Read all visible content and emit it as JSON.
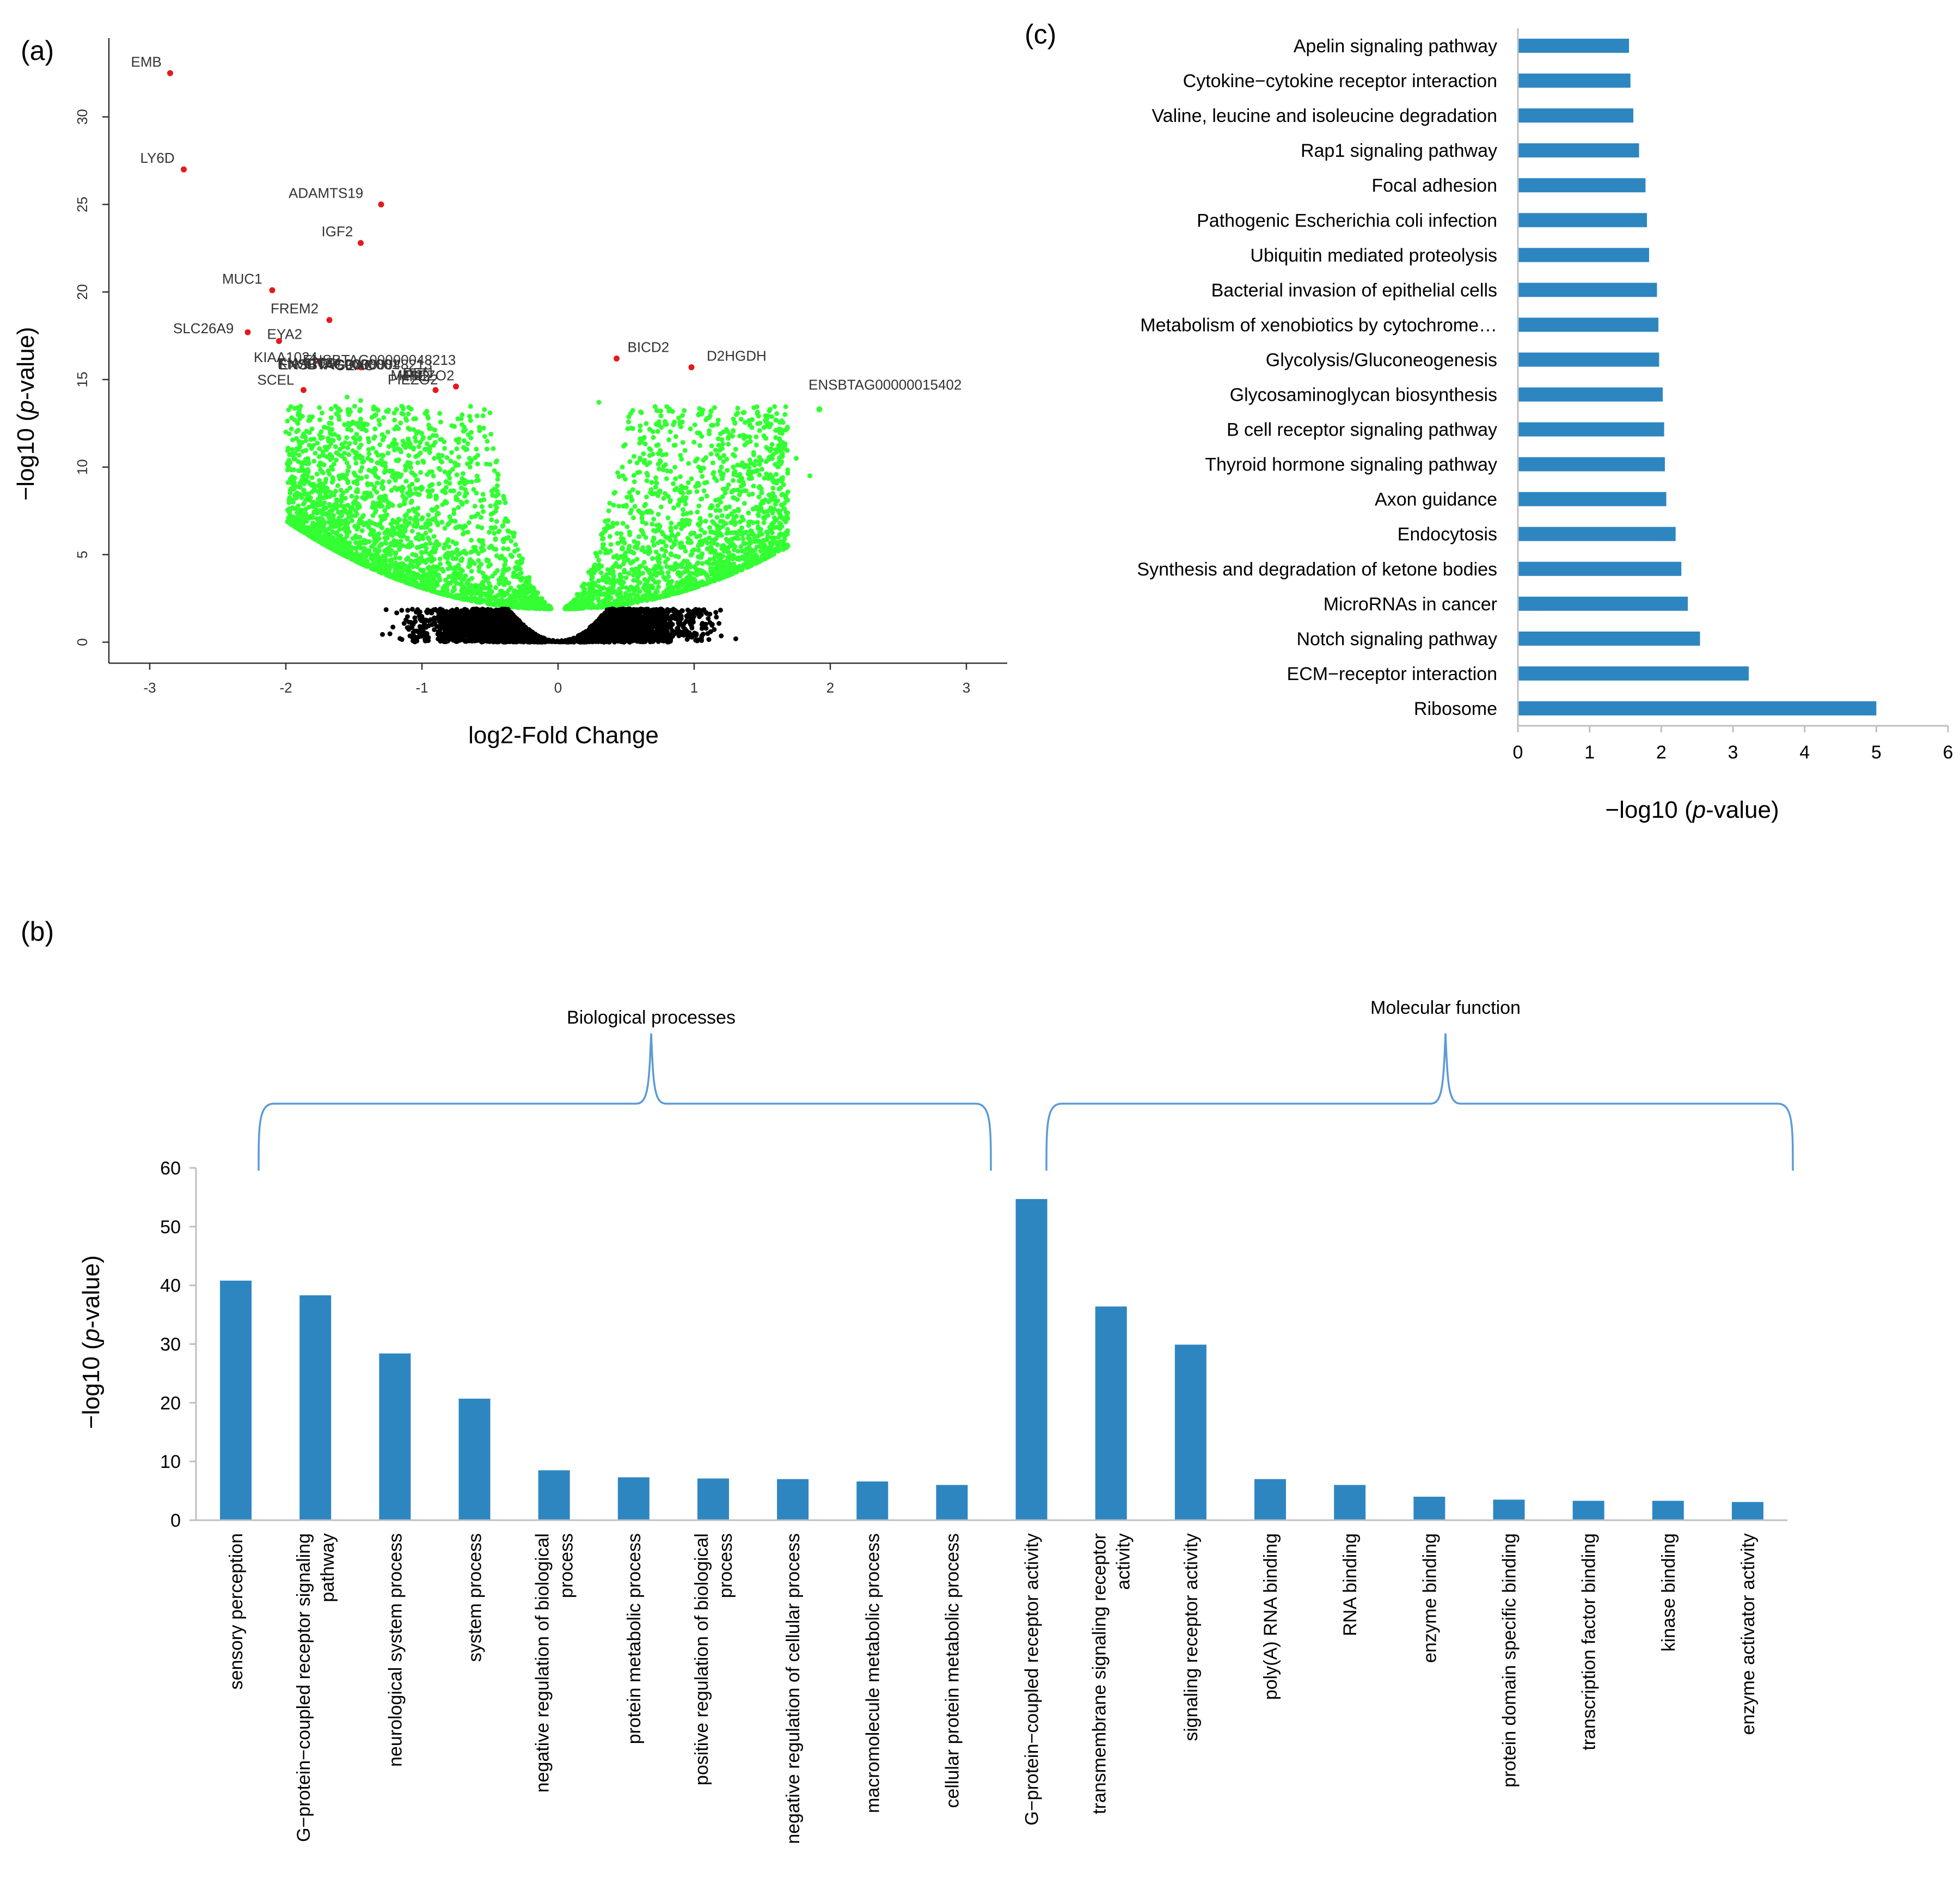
{
  "colors": {
    "bar": "#2e86c1",
    "sig_point": "#e41a1c",
    "green_point": "#33ff33",
    "black_point": "#000000",
    "brace": "#5b9bd5"
  },
  "chart_data": [
    {
      "panel": "(a)",
      "type": "scatter",
      "xlabel": "log2-Fold Change",
      "ylabel_prefix": "−log10 (",
      "ylabel_italic": "p",
      "ylabel_suffix": "-value)",
      "xlim": [
        -3.3,
        3.3
      ],
      "ylim": [
        -1.2,
        34.5
      ],
      "xticks": [
        -3,
        -2,
        -1,
        0,
        1,
        2,
        3
      ],
      "yticks": [
        0,
        5,
        10,
        15,
        20,
        25,
        30
      ],
      "background_cloud": "green points for significant genes, black points near origin for non-significant genes",
      "labeled_points": [
        {
          "gene": "EMB",
          "x": -2.85,
          "y": 32.5
        },
        {
          "gene": "LY6D",
          "x": -2.75,
          "y": 27.0
        },
        {
          "gene": "ADAMTS19",
          "x": -1.3,
          "y": 25.0
        },
        {
          "gene": "IGF2",
          "x": -1.45,
          "y": 22.8
        },
        {
          "gene": "MUC1",
          "x": -2.1,
          "y": 20.1
        },
        {
          "gene": "FREM2",
          "x": -1.68,
          "y": 18.4
        },
        {
          "gene": "SLC26A9",
          "x": -2.28,
          "y": 17.7
        },
        {
          "gene": "EYA2",
          "x": -2.05,
          "y": 17.2
        },
        {
          "gene": "KIAA1024",
          "x": -1.75,
          "y": 16.0
        },
        {
          "gene": "ENSBTAG00000048213",
          "x": -1.45,
          "y": 15.7
        },
        {
          "gene": "SCEL",
          "x": -1.87,
          "y": 14.4
        },
        {
          "gene": "PIEZO2",
          "x": -0.9,
          "y": 14.4
        },
        {
          "gene": "MFI2",
          "x": -0.75,
          "y": 14.6
        },
        {
          "gene": "BICD2",
          "x": 0.43,
          "y": 16.2
        },
        {
          "gene": "D2HGDH",
          "x": 0.98,
          "y": 15.7
        },
        {
          "gene": "ENSBTAG00000015402",
          "x": 1.92,
          "y": 13.3
        }
      ],
      "overlap_labels": [
        "KIAA1024",
        "ENSBTAG0000001",
        "6709",
        "CEAC",
        "ENSBTAG00000048213",
        "PIEZO2",
        "MFI2",
        "DEN"
      ]
    },
    {
      "panel": "(c)",
      "type": "bar",
      "orientation": "horizontal",
      "categories": [
        "Apelin signaling pathway",
        "Cytokine−cytokine receptor interaction",
        "Valine, leucine and isoleucine degradation",
        "Rap1 signaling pathway",
        "Focal adhesion",
        "Pathogenic Escherichia coli infection",
        "Ubiquitin mediated proteolysis",
        "Bacterial invasion of epithelial cells",
        "Metabolism of xenobiotics by cytochrome…",
        "Glycolysis/Gluconeogenesis",
        "Glycosaminoglycan biosynthesis",
        "B cell receptor signaling pathway",
        "Thyroid hormone signaling pathway",
        "Axon guidance",
        "Endocytosis",
        "Synthesis and degradation of ketone bodies",
        "MicroRNAs in cancer",
        "Notch signaling pathway",
        "ECM−receptor interaction",
        "Ribosome"
      ],
      "values": [
        1.55,
        1.57,
        1.61,
        1.69,
        1.78,
        1.8,
        1.83,
        1.94,
        1.96,
        1.97,
        2.02,
        2.04,
        2.05,
        2.07,
        2.2,
        2.28,
        2.37,
        2.54,
        3.22,
        5.0
      ],
      "xlim": [
        0,
        6
      ],
      "xticks": [
        0,
        1,
        2,
        3,
        4,
        5,
        6
      ],
      "xlabel_prefix": "−log10 (",
      "xlabel_italic": "p",
      "xlabel_suffix": "-value)"
    },
    {
      "panel": "(b)",
      "type": "bar",
      "orientation": "vertical",
      "categories": [
        [
          "sensory perception"
        ],
        [
          "G−protein−coupled receptor signaling",
          "pathway"
        ],
        [
          "neurological system process"
        ],
        [
          "system process"
        ],
        [
          "negative regulation of biological",
          "process"
        ],
        [
          "protein metabolic process"
        ],
        [
          "positive regulation of biological",
          "process"
        ],
        [
          "negative regulation of cellular process"
        ],
        [
          "macromolecule metabolic process"
        ],
        [
          "cellular protein metabolic process"
        ],
        [
          "G−protein−coupled receptor activity"
        ],
        [
          "transmembrane signaling receptor",
          "activity"
        ],
        [
          "signaling receptor activity"
        ],
        [
          "poly(A) RNA binding"
        ],
        [
          "RNA binding"
        ],
        [
          "enzyme binding"
        ],
        [
          "protein domain specific binding"
        ],
        [
          "transcription factor binding"
        ],
        [
          "kinase binding"
        ],
        [
          "enzyme activator activity"
        ]
      ],
      "values": [
        40.8,
        38.3,
        28.4,
        20.7,
        8.5,
        7.3,
        7.1,
        7.0,
        6.6,
        6.0,
        54.7,
        36.4,
        29.9,
        7.0,
        6.0,
        4.0,
        3.5,
        3.3,
        3.3,
        3.1
      ],
      "ylim": [
        0,
        60
      ],
      "yticks": [
        0,
        10,
        20,
        30,
        40,
        50,
        60
      ],
      "ylabel_prefix": "−log10 (",
      "ylabel_italic": "p",
      "ylabel_suffix": "-value)",
      "groups": [
        {
          "label": "Biological processes",
          "from": 0,
          "to": 9
        },
        {
          "label": "Molecular function",
          "from": 10,
          "to": 19
        }
      ]
    }
  ]
}
